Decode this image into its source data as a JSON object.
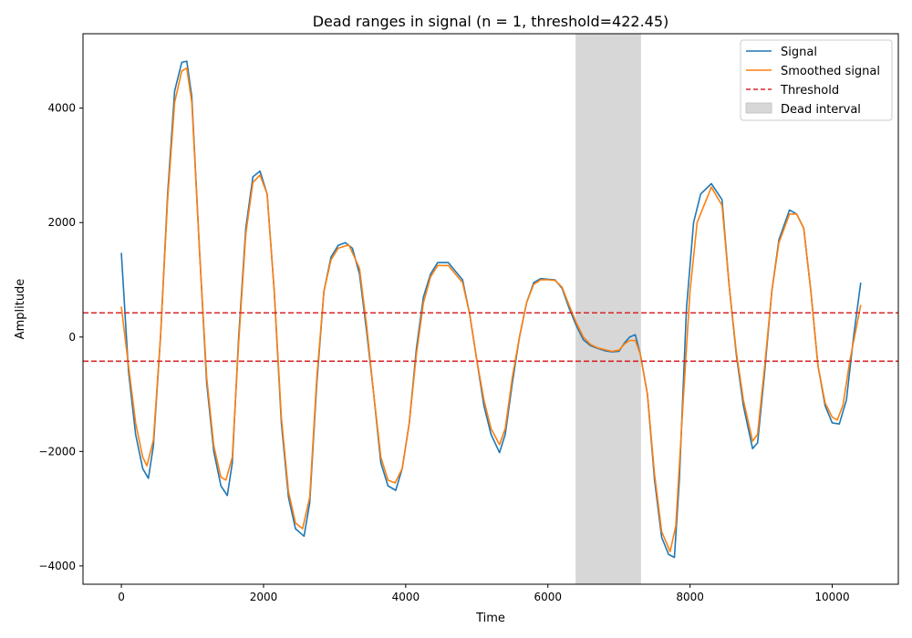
{
  "chart_data": {
    "type": "line",
    "title": "Dead ranges in signal (n = 1, threshold=422.45)",
    "xlabel": "Time",
    "ylabel": "Amplitude",
    "xlim": [
      -540,
      10930
    ],
    "ylim": [
      -4320,
      5300
    ],
    "xticks": [
      0,
      2000,
      4000,
      6000,
      8000,
      10000
    ],
    "xtick_labels": [
      "0",
      "2000",
      "4000",
      "6000",
      "8000",
      "10000"
    ],
    "yticks": [
      -4000,
      -2000,
      0,
      2000,
      4000
    ],
    "ytick_labels": [
      "−4000",
      "−2000",
      "0",
      "2000",
      "4000"
    ],
    "grid": false,
    "legend_position": "top-right",
    "legend": [
      {
        "label": "Signal",
        "kind": "line",
        "color": "#1f77b4"
      },
      {
        "label": "Smoothed signal",
        "kind": "line",
        "color": "#ff7f0e"
      },
      {
        "label": "Threshold",
        "kind": "dashed",
        "color": "#d62728"
      },
      {
        "label": "Dead interval",
        "kind": "patch",
        "color": "#d3d3d3"
      }
    ],
    "thresholds": [
      422.45,
      -422.45
    ],
    "dead_intervals": [
      [
        6390,
        7310
      ]
    ],
    "series": [
      {
        "name": "Signal",
        "color": "#1f77b4",
        "x": [
          0,
          100,
          200,
          300,
          380,
          450,
          550,
          650,
          750,
          850,
          920,
          990,
          1100,
          1200,
          1300,
          1400,
          1490,
          1560,
          1650,
          1750,
          1850,
          1950,
          2050,
          2150,
          2250,
          2350,
          2450,
          2570,
          2650,
          2750,
          2850,
          2950,
          3050,
          3150,
          3250,
          3350,
          3450,
          3550,
          3650,
          3750,
          3860,
          3950,
          4050,
          4150,
          4250,
          4350,
          4450,
          4600,
          4700,
          4800,
          4900,
          5000,
          5100,
          5200,
          5320,
          5400,
          5500,
          5600,
          5700,
          5800,
          5900,
          6000,
          6100,
          6200,
          6300,
          6400,
          6500,
          6600,
          6700,
          6800,
          6900,
          7000,
          7080,
          7150,
          7230,
          7300,
          7400,
          7500,
          7600,
          7700,
          7780,
          7850,
          7950,
          8050,
          8150,
          8300,
          8450,
          8550,
          8650,
          8750,
          8880,
          8950,
          9050,
          9150,
          9250,
          9400,
          9500,
          9600,
          9700,
          9800,
          9900,
          10000,
          10100,
          10200,
          10300,
          10400
        ],
        "values": [
          1460,
          -600,
          -1700,
          -2300,
          -2470,
          -1900,
          0,
          2500,
          4300,
          4800,
          4820,
          4200,
          1500,
          -800,
          -2000,
          -2600,
          -2770,
          -2200,
          0,
          1900,
          2800,
          2900,
          2500,
          800,
          -1500,
          -2800,
          -3350,
          -3480,
          -2900,
          -800,
          800,
          1400,
          1600,
          1650,
          1550,
          1100,
          100,
          -1000,
          -2200,
          -2600,
          -2680,
          -2300,
          -1500,
          -200,
          700,
          1100,
          1300,
          1300,
          1150,
          1000,
          400,
          -400,
          -1200,
          -1700,
          -2020,
          -1700,
          -800,
          0,
          600,
          950,
          1020,
          1010,
          1000,
          850,
          500,
          200,
          -50,
          -150,
          -200,
          -240,
          -260,
          -250,
          -100,
          0,
          40,
          -300,
          -1000,
          -2500,
          -3500,
          -3800,
          -3850,
          -2500,
          500,
          2000,
          2500,
          2680,
          2400,
          900,
          -300,
          -1200,
          -1950,
          -1850,
          -600,
          800,
          1700,
          2220,
          2150,
          1900,
          800,
          -500,
          -1200,
          -1500,
          -1520,
          -1100,
          0,
          940
        ]
      },
      {
        "name": "Smoothed signal",
        "color": "#ff7f0e",
        "x": [
          0,
          100,
          200,
          300,
          360,
          450,
          550,
          650,
          750,
          850,
          920,
          990,
          1100,
          1200,
          1300,
          1400,
          1470,
          1560,
          1650,
          1750,
          1850,
          1950,
          2050,
          2150,
          2250,
          2350,
          2450,
          2550,
          2650,
          2750,
          2850,
          2950,
          3050,
          3200,
          3350,
          3450,
          3550,
          3650,
          3750,
          3850,
          3950,
          4050,
          4150,
          4250,
          4350,
          4450,
          4600,
          4700,
          4800,
          4900,
          5000,
          5100,
          5200,
          5320,
          5400,
          5500,
          5600,
          5700,
          5800,
          5900,
          6000,
          6100,
          6200,
          6300,
          6400,
          6500,
          6600,
          6700,
          6800,
          6900,
          7000,
          7080,
          7150,
          7230,
          7300,
          7400,
          7500,
          7600,
          7720,
          7800,
          7900,
          8000,
          8100,
          8300,
          8450,
          8550,
          8650,
          8750,
          8880,
          8950,
          9050,
          9150,
          9250,
          9400,
          9500,
          9600,
          9700,
          9800,
          9900,
          10000,
          10070,
          10150,
          10250,
          10400
        ],
        "values": [
          520,
          -500,
          -1500,
          -2100,
          -2250,
          -1800,
          0,
          2400,
          4100,
          4650,
          4700,
          4100,
          1500,
          -700,
          -1900,
          -2450,
          -2500,
          -2100,
          -100,
          1800,
          2700,
          2830,
          2500,
          800,
          -1400,
          -2700,
          -3250,
          -3350,
          -2800,
          -700,
          800,
          1350,
          1550,
          1610,
          1200,
          200,
          -1000,
          -2100,
          -2500,
          -2550,
          -2300,
          -1500,
          -300,
          600,
          1050,
          1250,
          1250,
          1100,
          950,
          400,
          -400,
          -1100,
          -1600,
          -1880,
          -1600,
          -700,
          0,
          600,
          920,
          1000,
          1000,
          990,
          870,
          550,
          250,
          0,
          -130,
          -190,
          -220,
          -250,
          -230,
          -120,
          -60,
          -60,
          -300,
          -1000,
          -2400,
          -3400,
          -3750,
          -3300,
          -1200,
          800,
          2000,
          2620,
          2300,
          900,
          -250,
          -1100,
          -1820,
          -1700,
          -500,
          800,
          1650,
          2150,
          2150,
          1900,
          800,
          -500,
          -1150,
          -1400,
          -1450,
          -1200,
          -400,
          550
        ]
      }
    ]
  }
}
